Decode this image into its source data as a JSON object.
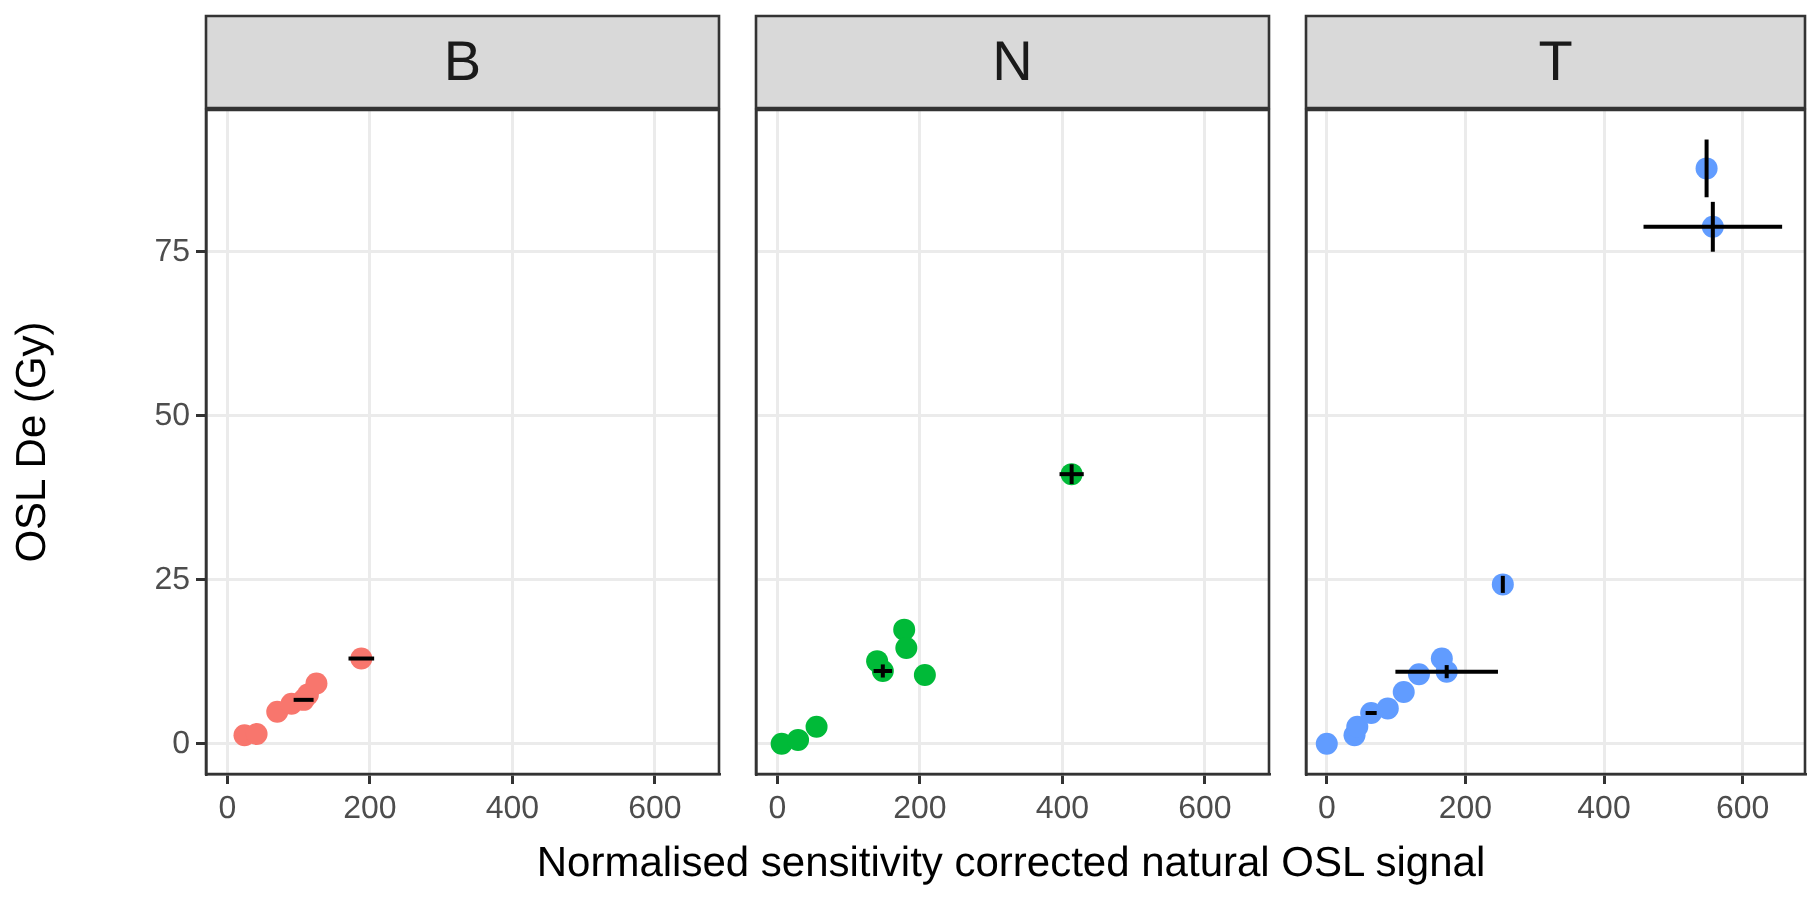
{
  "chart_data": [
    {
      "type": "scatter",
      "title": "B",
      "ylabel": "OSL De (Gy)",
      "color": "#f8766d",
      "x": [
        24,
        41,
        70,
        90,
        107,
        113,
        125,
        188
      ],
      "values": [
        1.3,
        1.5,
        4.9,
        6.1,
        6.7,
        7.5,
        9.2,
        13.0
      ],
      "xerrors": [
        null,
        null,
        null,
        null,
        14,
        null,
        null,
        18
      ],
      "errors": [
        null,
        null,
        null,
        null,
        null,
        null,
        null,
        null
      ],
      "xlim": [
        -30,
        690
      ],
      "ylim": [
        -4.6,
        96.6
      ],
      "xticks": [
        0,
        200,
        400,
        600
      ],
      "yticks": [
        0,
        25,
        50,
        75
      ],
      "grid": true,
      "marker": "circle"
    },
    {
      "type": "scatter",
      "title": "N",
      "xlabel": "Normalised sensitivity corrected natural OSL signal",
      "color": "#00ba38",
      "x": [
        6,
        29,
        55,
        140,
        148,
        178,
        181,
        207,
        413
      ],
      "values": [
        0,
        0.6,
        2.6,
        12.6,
        11.1,
        17.4,
        14.6,
        10.5,
        41.1
      ],
      "xerrors": [
        null,
        null,
        null,
        null,
        13,
        null,
        null,
        null,
        17
      ],
      "errors": [
        null,
        null,
        null,
        null,
        1,
        null,
        null,
        null,
        1.5
      ],
      "xlim": [
        -30,
        690
      ],
      "ylim": [
        -4.6,
        96.6
      ],
      "xticks": [
        0,
        200,
        400,
        600
      ],
      "yticks": [
        0,
        25,
        50,
        75
      ],
      "grid": true,
      "marker": "circle",
      "tick_labels": "x"
    },
    {
      "type": "scatter",
      "title": "T",
      "color": "#619cff",
      "x": [
        0,
        40,
        44,
        64,
        88,
        111,
        133,
        173,
        166,
        254,
        548,
        557
      ],
      "values": [
        0,
        1.3,
        2.6,
        4.7,
        5.4,
        7.9,
        10.6,
        11.0,
        13.0,
        24.3,
        87.7,
        78.8
      ],
      "xerrors": [
        null,
        null,
        null,
        8,
        null,
        null,
        null,
        74,
        null,
        null,
        null,
        100
      ],
      "errors": [
        null,
        null,
        null,
        null,
        null,
        null,
        null,
        1,
        null,
        1.3,
        4.4,
        3.8
      ],
      "xlim": [
        -30,
        690
      ],
      "ylim": [
        -4.6,
        96.6
      ],
      "xticks": [
        0,
        200,
        400,
        600
      ],
      "yticks": [
        0,
        25,
        50,
        75
      ],
      "grid": true,
      "marker": "circle",
      "tick_labels": "x"
    }
  ]
}
